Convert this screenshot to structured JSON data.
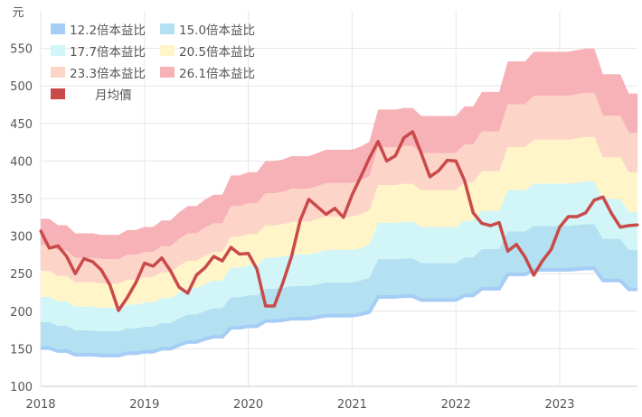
{
  "chart_data": {
    "type": "area",
    "ylabel": "元",
    "ylim": [
      100,
      600
    ],
    "yticks": [
      100,
      150,
      200,
      250,
      300,
      350,
      400,
      450,
      500,
      550
    ],
    "xticks": [
      "2018",
      "2019",
      "2020",
      "2021",
      "2022",
      "2023"
    ],
    "x_start": "2018-01",
    "x_end": "2023-10",
    "grid": true,
    "legend_position": "top-left",
    "multiples": [
      12.2,
      15.0,
      17.7,
      20.5,
      23.3,
      26.1
    ],
    "bands": [
      {
        "name": "12.2倍本益比",
        "color": "#a6cdf5"
      },
      {
        "name": "15.0倍本益比",
        "color": "#b3e1f2"
      },
      {
        "name": "17.7倍本益比",
        "color": "#d2f5f7"
      },
      {
        "name": "20.5倍本益比",
        "color": "#fff5c8"
      },
      {
        "name": "23.3倍本益比",
        "color": "#fdd5c8"
      },
      {
        "name": "26.1倍本益比",
        "color": "#f7b2b8"
      }
    ],
    "band_12_2_values": [
      151,
      151,
      147,
      147,
      142,
      142,
      142,
      141,
      141,
      141,
      144,
      144,
      146,
      146,
      150,
      150,
      155,
      159,
      159,
      163,
      166,
      166,
      178,
      178,
      180,
      180,
      187,
      187,
      188,
      190,
      190,
      190,
      192,
      194,
      194,
      194,
      194,
      196,
      199,
      219,
      219,
      219,
      220,
      220,
      215,
      215,
      215,
      215,
      215,
      221,
      221,
      230,
      230,
      230,
      249,
      249,
      249,
      255,
      255,
      255,
      255,
      255,
      256,
      257,
      257,
      241,
      241,
      241,
      229,
      229
    ],
    "price": {
      "name": "月均價",
      "color": "#c94a4a",
      "values": [
        307,
        284,
        287,
        273,
        250,
        270,
        266,
        255,
        235,
        201,
        218,
        238,
        264,
        260,
        271,
        254,
        232,
        224,
        248,
        258,
        273,
        267,
        285,
        276,
        277,
        256,
        207,
        207,
        238,
        273,
        321,
        349,
        339,
        329,
        337,
        325,
        355,
        379,
        404,
        426,
        400,
        407,
        431,
        439,
        410,
        379,
        387,
        401,
        400,
        374,
        331,
        317,
        314,
        318,
        280,
        289,
        272,
        248,
        267,
        282,
        312,
        326,
        326,
        331,
        348,
        352,
        330,
        312,
        314,
        315
      ]
    }
  },
  "legend": {
    "items": [
      "12.2倍本益比",
      "15.0倍本益比",
      "17.7倍本益比",
      "20.5倍本益比",
      "23.3倍本益比",
      "26.1倍本益比"
    ],
    "price": "月均價"
  }
}
